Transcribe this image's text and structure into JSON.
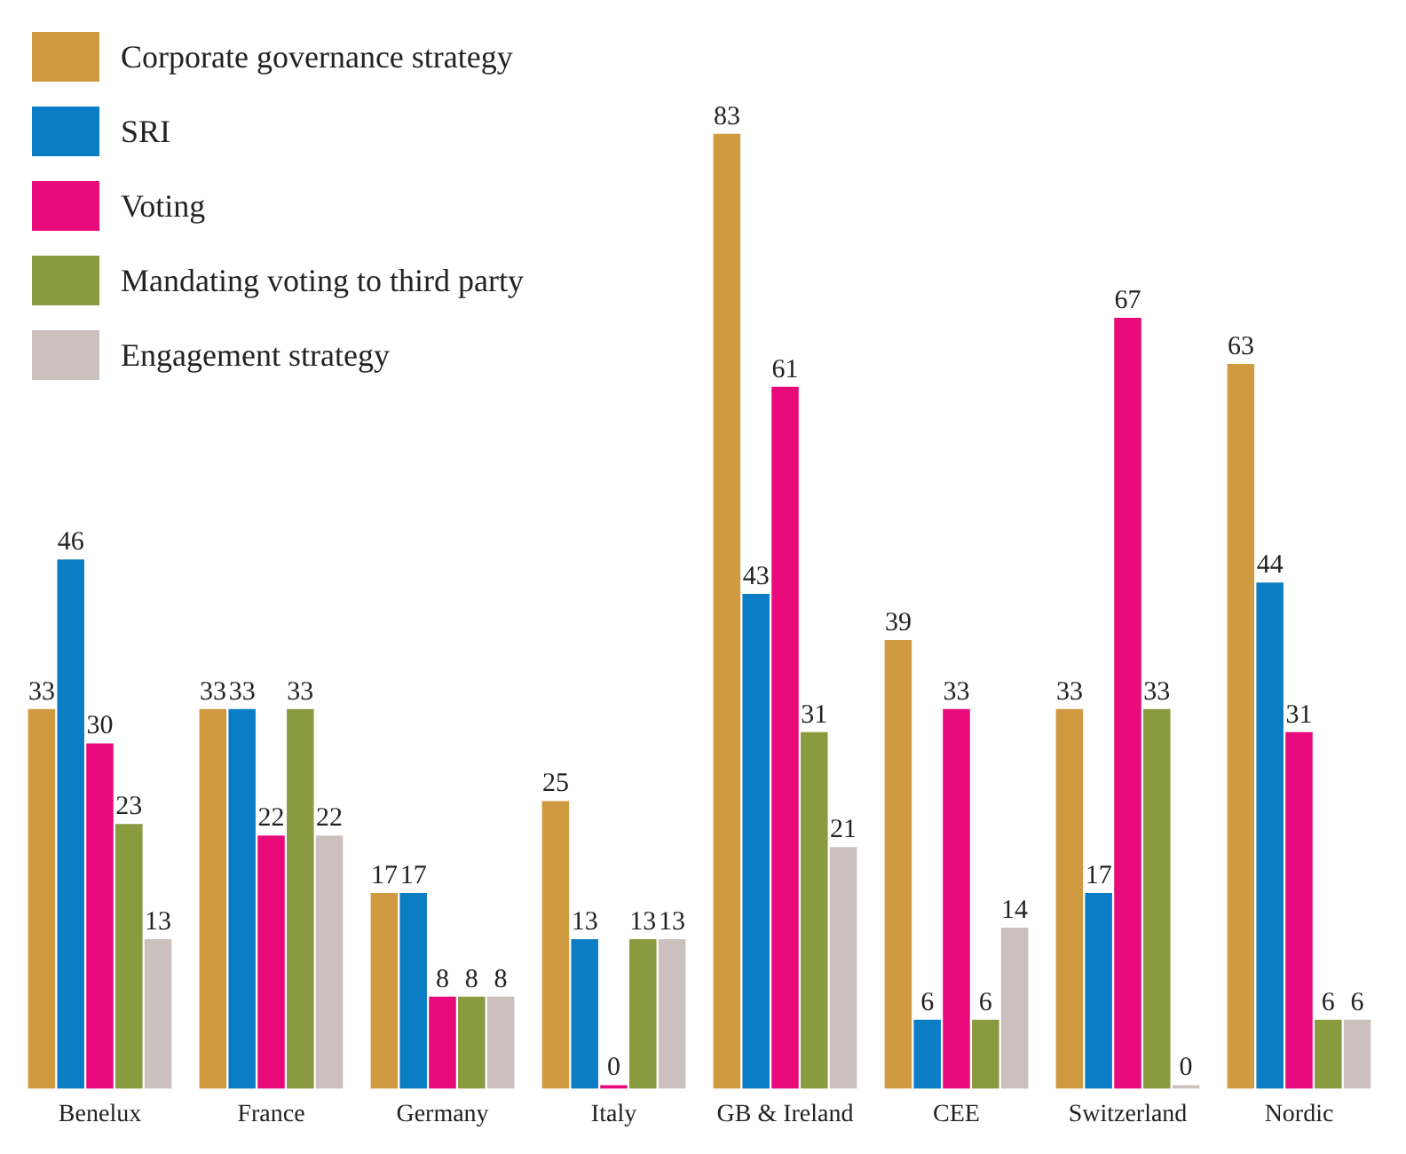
{
  "chart_data": {
    "type": "bar",
    "categories": [
      "Benelux",
      "France",
      "Germany",
      "Italy",
      "GB & Ireland",
      "CEE",
      "Switzerland",
      "Nordic"
    ],
    "series": [
      {
        "name": "Corporate governance strategy",
        "color": "#d09a41",
        "values": [
          33,
          33,
          17,
          25,
          83,
          39,
          33,
          63
        ]
      },
      {
        "name": "SRI",
        "color": "#0a7dc4",
        "values": [
          46,
          33,
          17,
          13,
          43,
          6,
          17,
          44
        ]
      },
      {
        "name": "Voting",
        "color": "#e8097a",
        "values": [
          30,
          22,
          8,
          0,
          61,
          33,
          67,
          31
        ]
      },
      {
        "name": "Mandating voting  to third party",
        "color": "#8a9a3e",
        "values": [
          23,
          33,
          8,
          13,
          31,
          6,
          33,
          6
        ]
      },
      {
        "name": "Engagement strategy",
        "color": "#cbc0bd",
        "values": [
          13,
          22,
          8,
          13,
          21,
          14,
          0,
          6
        ]
      }
    ],
    "data_labels": true,
    "legend": "top left",
    "grid": false
  }
}
